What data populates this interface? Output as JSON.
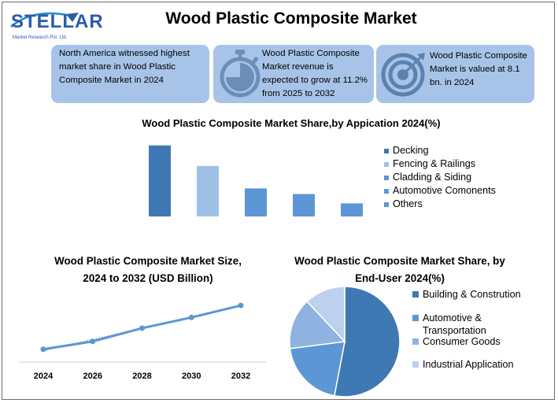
{
  "header": {
    "title": "Wood Plastic Composite Market",
    "logo_text": "STELLAR",
    "logo_subtitle": "Market Research Pvt. Ltd."
  },
  "cards": [
    {
      "lines": [
        "North America witnessed highest",
        "market share in Wood Plastic",
        "Composite Market in 2024"
      ]
    },
    {
      "lines": [
        "Wood Plastic Composite",
        "Market revenue is",
        "expected to grow at 11.2%",
        "from 2025 to 2032"
      ],
      "icon": "stopwatch-icon"
    },
    {
      "lines": [
        "Wood Plastic Composite",
        "Market is valued at 8.1",
        "bn. in 2024"
      ],
      "icon": "target-icon"
    }
  ],
  "colors": {
    "card_bg": "#a7c4e8",
    "accent_dark": "#3f79b4",
    "accent_mid": "#5c96d4",
    "accent_light": "#9fc0e6",
    "accent_pale": "#bdd1ee"
  },
  "chart_data": [
    {
      "type": "bar",
      "title": "Wood Plastic Composite Market Share,by Appication 2024(%)",
      "categories": [
        "Decking",
        "Fencing & Railings",
        "Cladding & Siding",
        "Automotive Comonents",
        "Others"
      ],
      "values": [
        38,
        27,
        15,
        12,
        7
      ],
      "ylim": [
        0,
        40
      ],
      "colors": [
        "#3f79b4",
        "#9fc0e6",
        "#5c96d4",
        "#5c96d4",
        "#5c96d4"
      ],
      "legend_position": "right",
      "grid": false
    },
    {
      "type": "line",
      "title_lines": [
        "Wood Plastic Composite Market Size,",
        "2024 to 2032 (USD Billion)"
      ],
      "x": [
        "2024",
        "2026",
        "2028",
        "2030",
        "2032"
      ],
      "values": [
        8.1,
        10.0,
        13.2,
        15.8,
        18.7
      ],
      "ylim": [
        5,
        25
      ],
      "color": "#5c96d4",
      "trendline": true,
      "grid": false
    },
    {
      "type": "pie",
      "title_lines": [
        "Wood Plastic Composite Market Share, by",
        "End-User 2024(%)"
      ],
      "categories": [
        "Building & Constrution",
        "Automotive & Transportation",
        "Consumer Goods",
        "Industrial Application"
      ],
      "values": [
        53,
        20,
        15,
        12
      ],
      "colors": [
        "#3f79b4",
        "#5c96d4",
        "#8fb3e0",
        "#bdd1ee"
      ],
      "legend_position": "right"
    }
  ]
}
